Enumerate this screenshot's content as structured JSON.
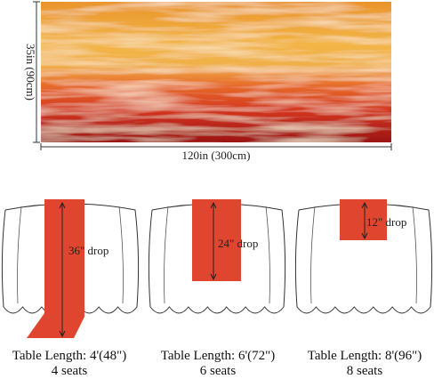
{
  "fabric": {
    "height_label": "35in (90cm)",
    "width_label": "120in (300cm)"
  },
  "tables": [
    {
      "drop": "36\" drop",
      "length": "Table Length: 4'(48\")",
      "seats": "4 seats"
    },
    {
      "drop": "24\" drop",
      "length": "Table Length: 6'(72\")",
      "seats": "6 seats"
    },
    {
      "drop": "12\" drop",
      "length": "Table Length: 8'(96\")",
      "seats": "8 seats"
    }
  ]
}
